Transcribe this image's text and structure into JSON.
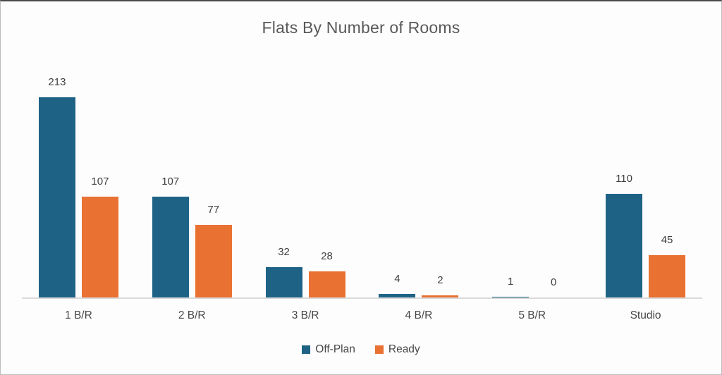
{
  "chart_data": {
    "type": "bar",
    "title": "Flats By Number of Rooms",
    "categories": [
      "1 B/R",
      "2 B/R",
      "3 B/R",
      "4 B/R",
      "5 B/R",
      "Studio"
    ],
    "series": [
      {
        "name": "Off-Plan",
        "color": "#1E6386",
        "values": [
          213,
          107,
          32,
          4,
          1,
          110
        ]
      },
      {
        "name": "Ready",
        "color": "#E97132",
        "values": [
          107,
          77,
          28,
          2,
          0,
          45
        ]
      }
    ],
    "xlabel": "",
    "ylabel": "",
    "ylim": [
      0,
      253
    ],
    "data_labels": true,
    "gridlines": false,
    "y_axis_visible": false,
    "legend_position": "bottom",
    "style": {
      "title_color": "#595959",
      "label_color": "#404040",
      "axis_line_color": "#D9D9D9",
      "background": "#FDFDFD"
    }
  }
}
